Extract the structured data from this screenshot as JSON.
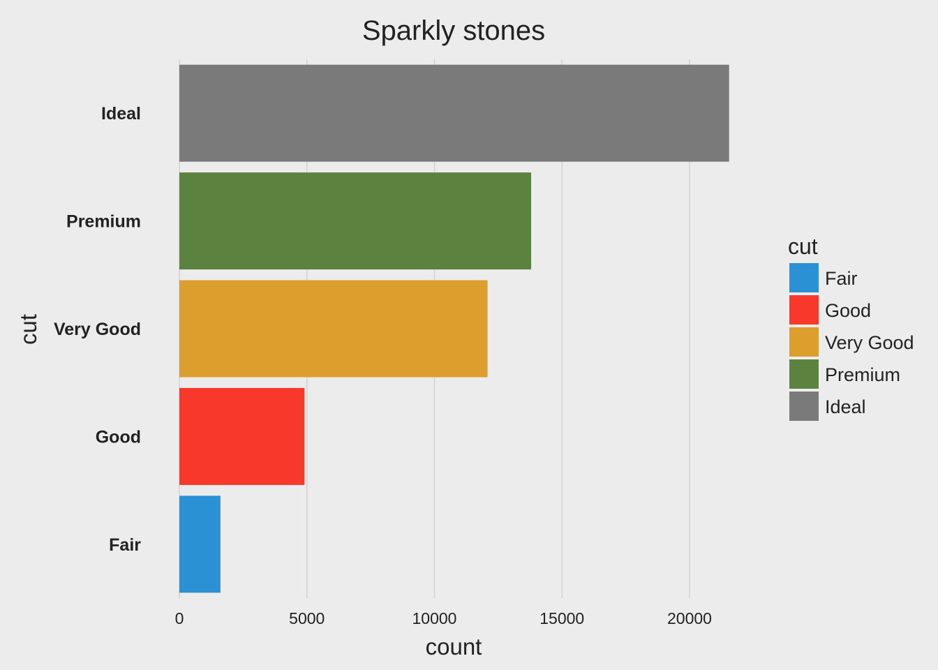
{
  "chart_data": {
    "type": "bar",
    "orientation": "horizontal",
    "title": "Sparkly stones",
    "xlabel": "count",
    "ylabel": "cut",
    "categories": [
      "Fair",
      "Good",
      "Very Good",
      "Premium",
      "Ideal"
    ],
    "values": [
      1610,
      4906,
      12082,
      13791,
      21551
    ],
    "colors": [
      "#2b91d5",
      "#f8382a",
      "#dc9f2e",
      "#5b823f",
      "#7a7a7a"
    ],
    "xlim": [
      0,
      22500
    ],
    "xticks": [
      0,
      5000,
      10000,
      15000,
      20000
    ],
    "xtick_labels": [
      "0",
      "5000",
      "10000",
      "15000",
      "20000"
    ],
    "grid": "vertical",
    "legend": {
      "title": "cut",
      "placement": "right",
      "entries": [
        "Fair",
        "Good",
        "Very Good",
        "Premium",
        "Ideal"
      ]
    }
  }
}
